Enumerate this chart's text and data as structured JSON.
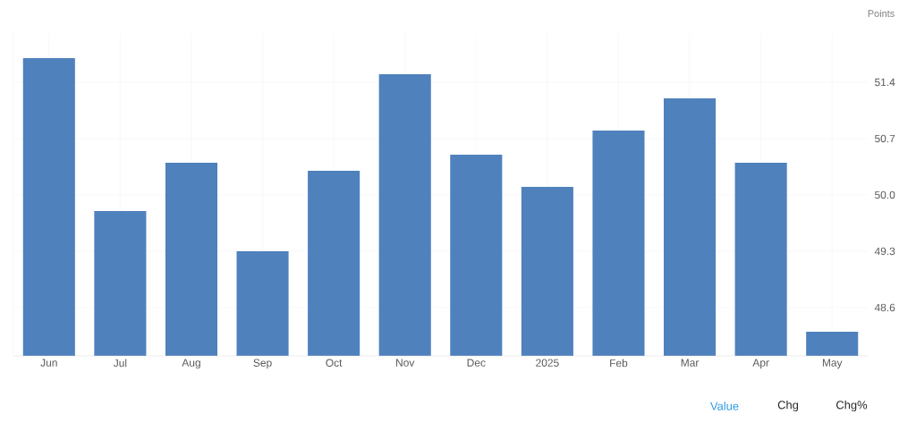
{
  "chart_data": {
    "type": "bar",
    "ylabel": "Points",
    "categories": [
      "Jun",
      "Jul",
      "Aug",
      "Sep",
      "Oct",
      "Nov",
      "Dec",
      "2025",
      "Feb",
      "Mar",
      "Apr",
      "May"
    ],
    "values": [
      51.7,
      49.8,
      50.4,
      49.3,
      50.3,
      51.5,
      50.5,
      50.1,
      50.8,
      51.2,
      50.4,
      48.3
    ],
    "color": "#4f81bd",
    "ylim": [
      48.0,
      52.0
    ],
    "yticks": [
      48.6,
      49.3,
      {
        "value": 50,
        "label": "50.0"
      },
      50.7,
      51.4
    ],
    "grid": true,
    "annotations": [
      "Value",
      "Chg",
      "Chg%"
    ]
  }
}
